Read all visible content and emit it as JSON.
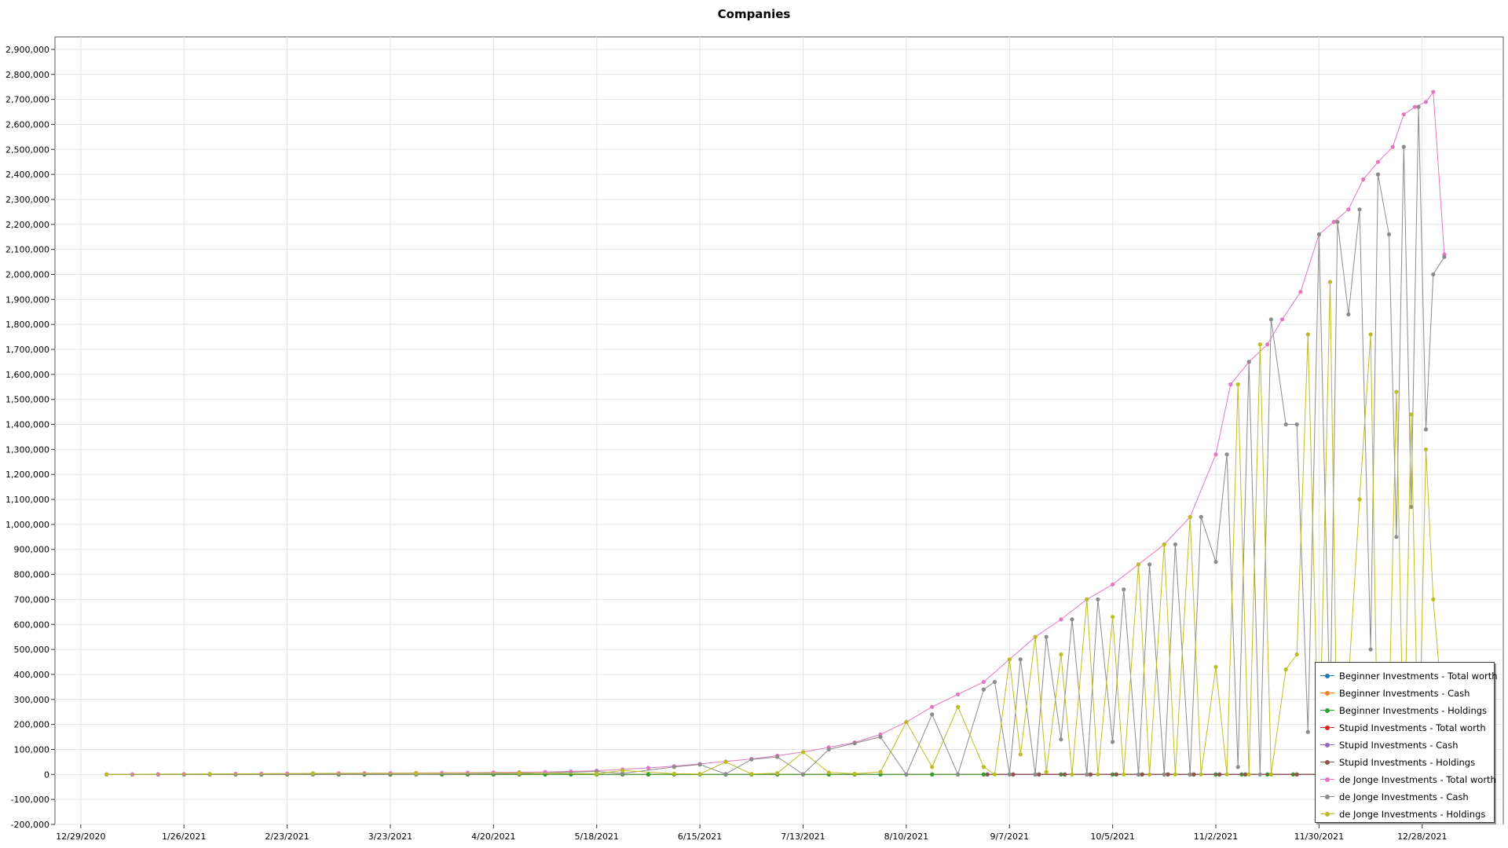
{
  "chart_data": {
    "type": "line",
    "title": "Companies",
    "xlabel": "",
    "ylabel": "",
    "x_tick_labels": [
      "12/29/2020",
      "1/26/2021",
      "2/23/2021",
      "3/23/2021",
      "4/20/2021",
      "5/18/2021",
      "6/15/2021",
      "7/13/2021",
      "8/10/2021",
      "9/7/2021",
      "10/5/2021",
      "11/2/2021",
      "11/30/2021",
      "12/28/2021"
    ],
    "y_tick_labels": [
      "-200,000",
      "-100,000",
      "0",
      "100,000",
      "200,000",
      "300,000",
      "400,000",
      "500,000",
      "600,000",
      "700,000",
      "800,000",
      "900,000",
      "1,000,000",
      "1,100,000",
      "1,200,000",
      "1,300,000",
      "1,400,000",
      "1,500,000",
      "1,600,000",
      "1,700,000",
      "1,800,000",
      "1,900,000",
      "2,000,000",
      "2,100,000",
      "2,200,000",
      "2,300,000",
      "2,400,000",
      "2,500,000",
      "2,600,000",
      "2,700,000",
      "2,800,000",
      "2,900,000"
    ],
    "xlim": [
      "2020-12-22",
      "2022-01-19"
    ],
    "ylim": [
      -200000,
      2950000
    ],
    "grid": true,
    "legend_position": "bottom-right",
    "series": [
      {
        "name": "Beginner Investments - Total worth",
        "color": "#1f77b4",
        "points": [
          [
            "2021-01-05",
            0
          ],
          [
            "2021-12-31",
            0
          ]
        ]
      },
      {
        "name": "Beginner Investments - Cash",
        "color": "#ff7f0e",
        "points": [
          [
            "2021-01-05",
            0
          ],
          [
            "2021-12-31",
            0
          ]
        ]
      },
      {
        "name": "Beginner Investments - Holdings",
        "color": "#2ca02c",
        "points": [
          [
            "2021-01-05",
            0
          ],
          [
            "2021-12-31",
            0
          ]
        ]
      },
      {
        "name": "Stupid Investments - Total worth",
        "color": "#d62728",
        "points": [
          [
            "2021-09-01",
            0
          ],
          [
            "2021-12-31",
            0
          ]
        ]
      },
      {
        "name": "Stupid Investments - Cash",
        "color": "#9467bd",
        "points": [
          [
            "2021-09-01",
            0
          ],
          [
            "2021-12-31",
            0
          ]
        ]
      },
      {
        "name": "Stupid Investments - Holdings",
        "color": "#8c564b",
        "points": [
          [
            "2021-09-01",
            0
          ],
          [
            "2021-12-31",
            0
          ]
        ]
      },
      {
        "name": "de Jonge Investments - Total worth",
        "color": "#e377c2",
        "points": [
          [
            "2021-01-05",
            200
          ],
          [
            "2021-01-12",
            600
          ],
          [
            "2021-01-19",
            1000
          ],
          [
            "2021-01-26",
            1500
          ],
          [
            "2021-02-02",
            2000
          ],
          [
            "2021-02-09",
            2500
          ],
          [
            "2021-02-16",
            3000
          ],
          [
            "2021-02-23",
            3500
          ],
          [
            "2021-03-02",
            4000
          ],
          [
            "2021-03-09",
            4500
          ],
          [
            "2021-03-16",
            5000
          ],
          [
            "2021-03-23",
            5500
          ],
          [
            "2021-03-30",
            6000
          ],
          [
            "2021-04-06",
            6500
          ],
          [
            "2021-04-13",
            7000
          ],
          [
            "2021-04-20",
            8000
          ],
          [
            "2021-04-27",
            9000
          ],
          [
            "2021-05-04",
            10000
          ],
          [
            "2021-05-11",
            12000
          ],
          [
            "2021-05-18",
            15000
          ],
          [
            "2021-05-25",
            20000
          ],
          [
            "2021-06-01",
            26000
          ],
          [
            "2021-06-08",
            33000
          ],
          [
            "2021-06-15",
            42000
          ],
          [
            "2021-06-22",
            52000
          ],
          [
            "2021-06-29",
            62000
          ],
          [
            "2021-07-06",
            75000
          ],
          [
            "2021-07-13",
            90000
          ],
          [
            "2021-07-20",
            108000
          ],
          [
            "2021-07-27",
            128000
          ],
          [
            "2021-08-03",
            160000
          ],
          [
            "2021-08-10",
            210000
          ],
          [
            "2021-08-17",
            270000
          ],
          [
            "2021-08-24",
            320000
          ],
          [
            "2021-08-31",
            370000
          ],
          [
            "2021-09-07",
            460000
          ],
          [
            "2021-09-14",
            550000
          ],
          [
            "2021-09-21",
            620000
          ],
          [
            "2021-09-28",
            700000
          ],
          [
            "2021-10-05",
            760000
          ],
          [
            "2021-10-12",
            840000
          ],
          [
            "2021-10-19",
            920000
          ],
          [
            "2021-10-26",
            1030000
          ],
          [
            "2021-11-02",
            1280000
          ],
          [
            "2021-11-06",
            1560000
          ],
          [
            "2021-11-11",
            1650000
          ],
          [
            "2021-11-16",
            1720000
          ],
          [
            "2021-11-20",
            1820000
          ],
          [
            "2021-11-25",
            1930000
          ],
          [
            "2021-11-30",
            2160000
          ],
          [
            "2021-12-04",
            2210000
          ],
          [
            "2021-12-08",
            2260000
          ],
          [
            "2021-12-12",
            2380000
          ],
          [
            "2021-12-16",
            2450000
          ],
          [
            "2021-12-20",
            2510000
          ],
          [
            "2021-12-23",
            2640000
          ],
          [
            "2021-12-26",
            2670000
          ],
          [
            "2021-12-29",
            2690000
          ],
          [
            "2021-12-31",
            2730000
          ],
          [
            "2022-01-03",
            2080000
          ]
        ]
      },
      {
        "name": "de Jonge Investments - Cash",
        "color": "#8c8c8c",
        "points": [
          [
            "2021-01-05",
            0
          ],
          [
            "2021-02-02",
            0
          ],
          [
            "2021-03-02",
            0
          ],
          [
            "2021-03-30",
            1000
          ],
          [
            "2021-04-27",
            3000
          ],
          [
            "2021-05-18",
            12000
          ],
          [
            "2021-05-25",
            4000
          ],
          [
            "2021-06-08",
            30000
          ],
          [
            "2021-06-15",
            40000
          ],
          [
            "2021-06-22",
            2000
          ],
          [
            "2021-06-29",
            60000
          ],
          [
            "2021-07-06",
            70000
          ],
          [
            "2021-07-13",
            1000
          ],
          [
            "2021-07-20",
            100000
          ],
          [
            "2021-07-27",
            125000
          ],
          [
            "2021-08-03",
            150000
          ],
          [
            "2021-08-10",
            0
          ],
          [
            "2021-08-17",
            240000
          ],
          [
            "2021-08-24",
            0
          ],
          [
            "2021-08-31",
            340000
          ],
          [
            "2021-09-03",
            370000
          ],
          [
            "2021-09-07",
            0
          ],
          [
            "2021-09-10",
            460000
          ],
          [
            "2021-09-14",
            0
          ],
          [
            "2021-09-17",
            550000
          ],
          [
            "2021-09-21",
            140000
          ],
          [
            "2021-09-24",
            620000
          ],
          [
            "2021-09-28",
            0
          ],
          [
            "2021-10-01",
            700000
          ],
          [
            "2021-10-05",
            130000
          ],
          [
            "2021-10-08",
            740000
          ],
          [
            "2021-10-12",
            0
          ],
          [
            "2021-10-15",
            840000
          ],
          [
            "2021-10-19",
            0
          ],
          [
            "2021-10-22",
            920000
          ],
          [
            "2021-10-26",
            0
          ],
          [
            "2021-10-29",
            1030000
          ],
          [
            "2021-11-02",
            850000
          ],
          [
            "2021-11-05",
            1280000
          ],
          [
            "2021-11-08",
            30000
          ],
          [
            "2021-11-11",
            1650000
          ],
          [
            "2021-11-14",
            0
          ],
          [
            "2021-11-17",
            1820000
          ],
          [
            "2021-11-21",
            1400000
          ],
          [
            "2021-11-24",
            1400000
          ],
          [
            "2021-11-27",
            170000
          ],
          [
            "2021-11-30",
            2160000
          ],
          [
            "2021-12-03",
            210000
          ],
          [
            "2021-12-05",
            2210000
          ],
          [
            "2021-12-08",
            1840000
          ],
          [
            "2021-12-11",
            2260000
          ],
          [
            "2021-12-14",
            500000
          ],
          [
            "2021-12-16",
            2400000
          ],
          [
            "2021-12-19",
            2160000
          ],
          [
            "2021-12-21",
            950000
          ],
          [
            "2021-12-23",
            2510000
          ],
          [
            "2021-12-25",
            1070000
          ],
          [
            "2021-12-27",
            2670000
          ],
          [
            "2021-12-29",
            1380000
          ],
          [
            "2021-12-31",
            2000000
          ],
          [
            "2022-01-03",
            2070000
          ]
        ]
      },
      {
        "name": "de Jonge Investments - Holdings",
        "color": "#bcbd22",
        "points": [
          [
            "2021-01-05",
            200
          ],
          [
            "2021-02-02",
            2000
          ],
          [
            "2021-03-02",
            4000
          ],
          [
            "2021-03-30",
            5000
          ],
          [
            "2021-04-27",
            6000
          ],
          [
            "2021-05-18",
            3000
          ],
          [
            "2021-05-25",
            16000
          ],
          [
            "2021-06-08",
            3000
          ],
          [
            "2021-06-15",
            2000
          ],
          [
            "2021-06-22",
            50000
          ],
          [
            "2021-06-29",
            2000
          ],
          [
            "2021-07-06",
            5000
          ],
          [
            "2021-07-13",
            89000
          ],
          [
            "2021-07-20",
            8000
          ],
          [
            "2021-07-27",
            3000
          ],
          [
            "2021-08-03",
            10000
          ],
          [
            "2021-08-10",
            210000
          ],
          [
            "2021-08-17",
            30000
          ],
          [
            "2021-08-24",
            270000
          ],
          [
            "2021-08-31",
            30000
          ],
          [
            "2021-09-03",
            0
          ],
          [
            "2021-09-07",
            460000
          ],
          [
            "2021-09-10",
            80000
          ],
          [
            "2021-09-14",
            550000
          ],
          [
            "2021-09-17",
            10000
          ],
          [
            "2021-09-21",
            480000
          ],
          [
            "2021-09-24",
            0
          ],
          [
            "2021-09-28",
            700000
          ],
          [
            "2021-10-01",
            0
          ],
          [
            "2021-10-05",
            630000
          ],
          [
            "2021-10-08",
            0
          ],
          [
            "2021-10-12",
            840000
          ],
          [
            "2021-10-15",
            0
          ],
          [
            "2021-10-19",
            920000
          ],
          [
            "2021-10-22",
            0
          ],
          [
            "2021-10-26",
            1030000
          ],
          [
            "2021-10-29",
            0
          ],
          [
            "2021-11-02",
            430000
          ],
          [
            "2021-11-05",
            0
          ],
          [
            "2021-11-08",
            1560000
          ],
          [
            "2021-11-11",
            0
          ],
          [
            "2021-11-14",
            1720000
          ],
          [
            "2021-11-17",
            0
          ],
          [
            "2021-11-21",
            420000
          ],
          [
            "2021-11-24",
            480000
          ],
          [
            "2021-11-27",
            1760000
          ],
          [
            "2021-11-30",
            0
          ],
          [
            "2021-12-03",
            1970000
          ],
          [
            "2021-12-05",
            0
          ],
          [
            "2021-12-08",
            370000
          ],
          [
            "2021-12-11",
            1100000
          ],
          [
            "2021-12-14",
            1760000
          ],
          [
            "2021-12-16",
            0
          ],
          [
            "2021-12-19",
            230000
          ],
          [
            "2021-12-21",
            1530000
          ],
          [
            "2021-12-23",
            0
          ],
          [
            "2021-12-25",
            1440000
          ],
          [
            "2021-12-27",
            0
          ],
          [
            "2021-12-29",
            1300000
          ],
          [
            "2021-12-31",
            700000
          ],
          [
            "2022-01-03",
            180000
          ]
        ]
      }
    ]
  }
}
